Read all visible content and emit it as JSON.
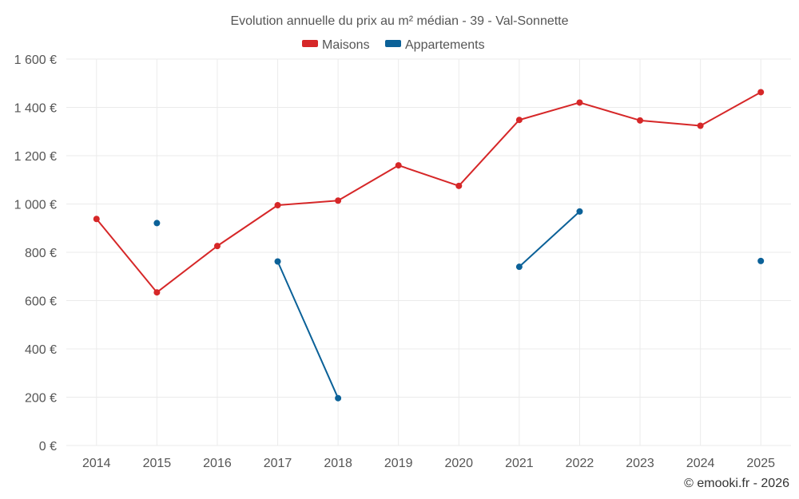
{
  "chart_data": {
    "type": "line",
    "title": "Evolution annuelle du prix au m² médian - 39 - Val-Sonnette",
    "categories": [
      "2014",
      "2015",
      "2016",
      "2017",
      "2018",
      "2019",
      "2020",
      "2021",
      "2022",
      "2023",
      "2024",
      "2025"
    ],
    "series": [
      {
        "name": "Maisons",
        "color": "#d62728",
        "values": [
          938,
          634,
          826,
          995,
          1014,
          1160,
          1075,
          1348,
          1420,
          1346,
          1324,
          1463
        ]
      },
      {
        "name": "Appartements",
        "color": "#0b6198",
        "values": [
          null,
          921,
          null,
          762,
          196,
          null,
          null,
          740,
          969,
          null,
          null,
          764
        ]
      }
    ],
    "y_ticks": [
      "0 €",
      "200 €",
      "400 €",
      "600 €",
      "800 €",
      "1 000 €",
      "1 200 €",
      "1 400 €",
      "1 600 €"
    ],
    "ylim": [
      0,
      1600
    ],
    "xlabel": "",
    "ylabel": "",
    "legend_position": "top-center",
    "credit": "© emooki.fr - 2026"
  }
}
